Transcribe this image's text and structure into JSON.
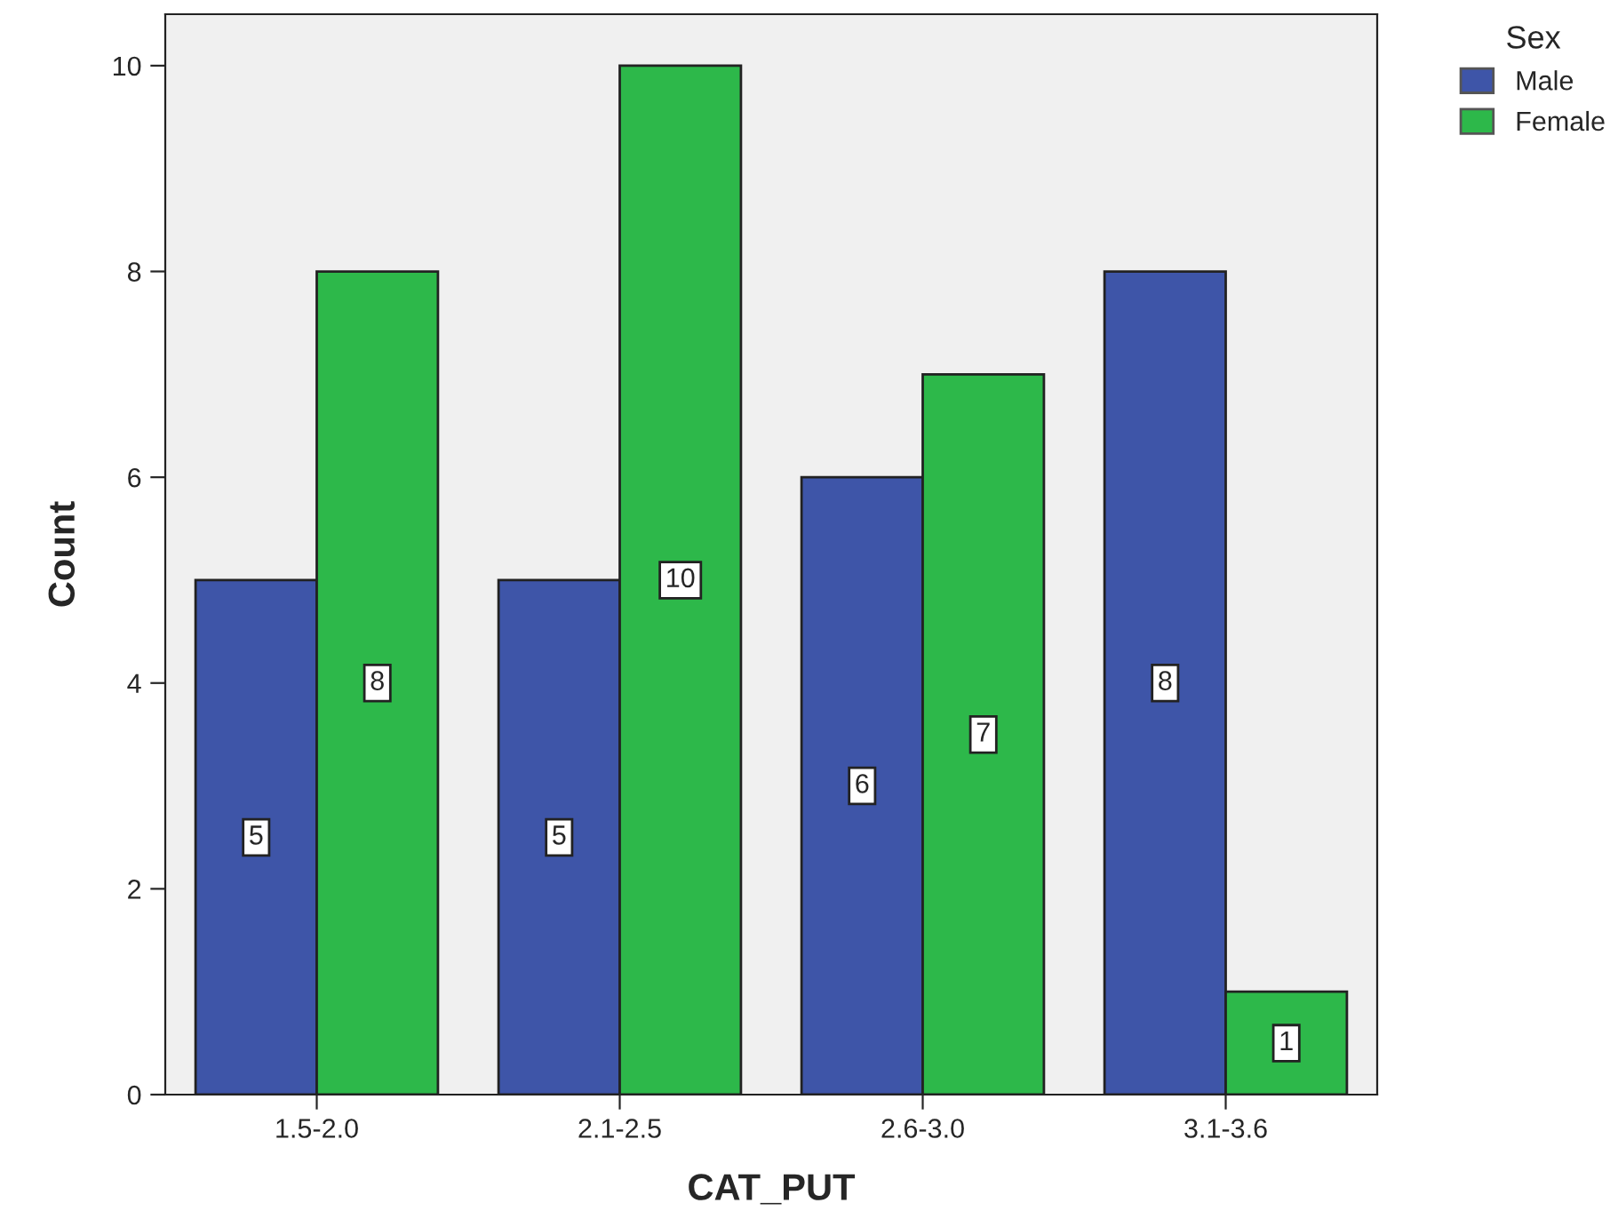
{
  "chart_data": {
    "type": "bar",
    "xlabel": "CAT_PUT",
    "ylabel": "Count",
    "legend_title": "Sex",
    "legend": "top right",
    "categories": [
      "1.5-2.0",
      "2.1-2.5",
      "2.6-3.0",
      "3.1-3.6"
    ],
    "series": [
      {
        "name": "Male",
        "color": "#3e55a8",
        "values": [
          5,
          5,
          6,
          8
        ]
      },
      {
        "name": "Female",
        "color": "#2db84a",
        "values": [
          8,
          10,
          7,
          1
        ]
      }
    ],
    "ylim": [
      0,
      10.5
    ],
    "yticks": [
      0,
      2,
      4,
      6,
      8,
      10
    ],
    "grid": false,
    "data_labels": true
  }
}
